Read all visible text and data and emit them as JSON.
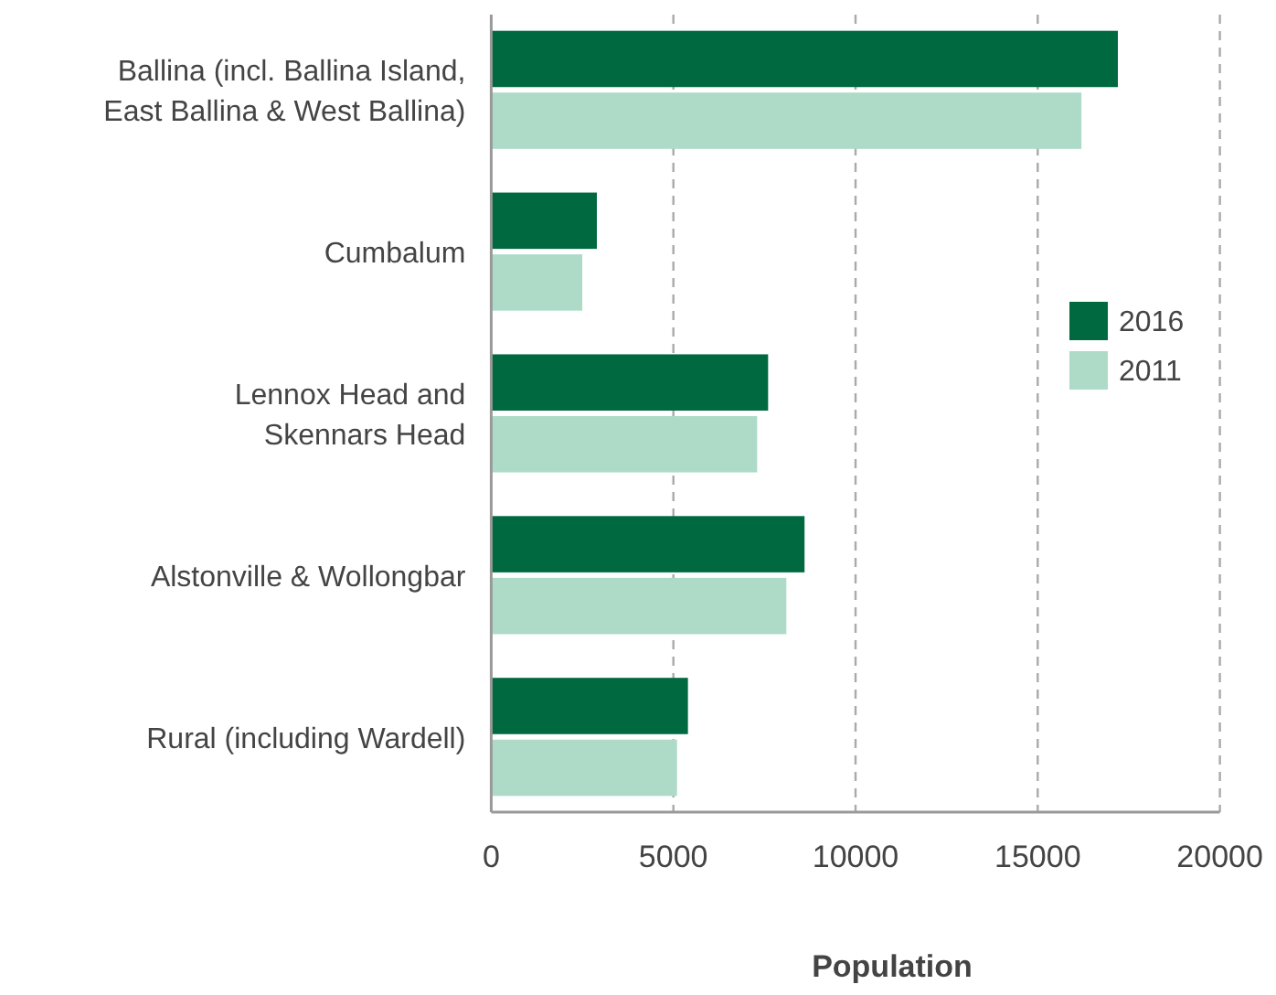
{
  "chart_data": {
    "type": "bar",
    "orientation": "horizontal",
    "xlabel": "Population",
    "categories": [
      "Ballina (incl. Ballina Island, East Ballina & West Ballina)",
      "Cumbalum",
      "Lennox Head and Skennars Head",
      "Alstonville & Wollongbar",
      "Rural (including Wardell)"
    ],
    "series": [
      {
        "name": "2016",
        "color": "#006940",
        "values": [
          17200,
          2900,
          7600,
          8600,
          5400
        ]
      },
      {
        "name": "2011",
        "color": "#addbc8",
        "values": [
          16200,
          2500,
          7300,
          8100,
          5100
        ]
      }
    ],
    "xlim": [
      0,
      20000
    ],
    "xticks": [
      0,
      5000,
      10000,
      15000,
      20000
    ],
    "grid": "x",
    "legend": "right"
  }
}
